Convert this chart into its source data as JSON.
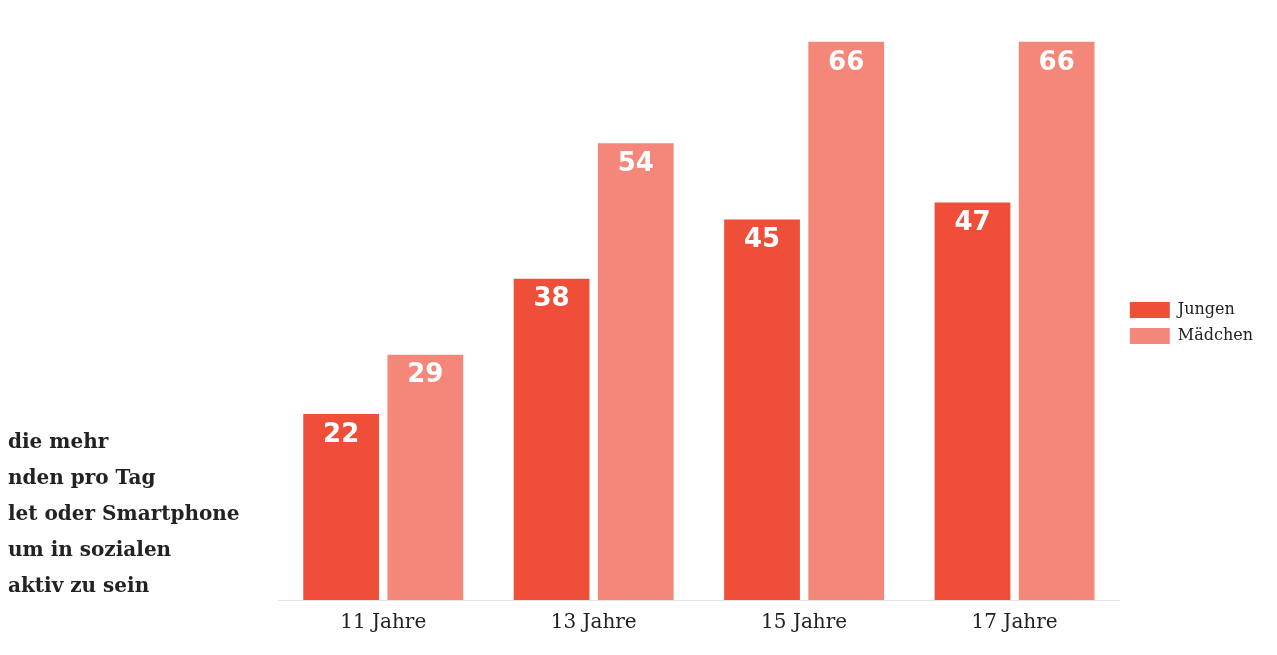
{
  "chart_data": {
    "type": "bar",
    "categories": [
      "11 Jahre",
      "13 Jahre",
      "15 Jahre",
      "17 Jahre"
    ],
    "series": [
      {
        "name": "Jungen",
        "color": "#ef4f39",
        "values": [
          22,
          38,
          45,
          47
        ]
      },
      {
        "name": "Mädchen",
        "color": "#f4877a",
        "values": [
          29,
          54,
          66,
          66
        ]
      }
    ],
    "data_labels": true,
    "legend": "right",
    "grid": false,
    "annotations": [
      "die mehr",
      "nden pro Tag",
      "let oder Smartphone",
      "um in sozialen",
      "aktiv zu sein"
    ]
  }
}
